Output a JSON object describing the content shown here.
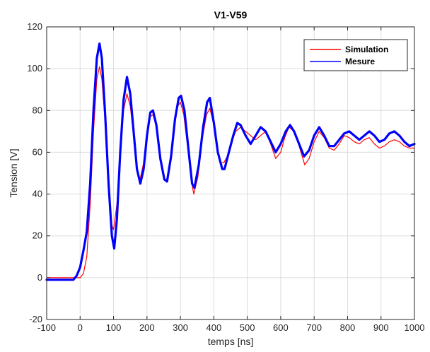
{
  "chart_data": {
    "type": "line",
    "title": "V1-V59",
    "xlabel": "temps [ns]",
    "ylabel": "Tension [V]",
    "xlim": [
      -100,
      1000
    ],
    "ylim": [
      -20,
      120
    ],
    "xticks": [
      -100,
      0,
      100,
      200,
      300,
      400,
      500,
      600,
      700,
      800,
      900,
      1000
    ],
    "yticks": [
      -20,
      0,
      20,
      40,
      60,
      80,
      100,
      120
    ],
    "grid": true,
    "legend_position": "top-right",
    "series": [
      {
        "name": "Simulation",
        "color": "#ff0000",
        "points": [
          [
            -100,
            0
          ],
          [
            0,
            0
          ],
          [
            10,
            2
          ],
          [
            20,
            10
          ],
          [
            30,
            35
          ],
          [
            40,
            70
          ],
          [
            50,
            95
          ],
          [
            58,
            101
          ],
          [
            65,
            95
          ],
          [
            75,
            75
          ],
          [
            85,
            45
          ],
          [
            95,
            25
          ],
          [
            100,
            23
          ],
          [
            110,
            35
          ],
          [
            120,
            62
          ],
          [
            130,
            80
          ],
          [
            140,
            88
          ],
          [
            150,
            82
          ],
          [
            160,
            68
          ],
          [
            170,
            52
          ],
          [
            178,
            46
          ],
          [
            190,
            55
          ],
          [
            200,
            70
          ],
          [
            210,
            77
          ],
          [
            218,
            78
          ],
          [
            228,
            72
          ],
          [
            240,
            58
          ],
          [
            252,
            47
          ],
          [
            258,
            46
          ],
          [
            270,
            56
          ],
          [
            282,
            72
          ],
          [
            292,
            82
          ],
          [
            300,
            84
          ],
          [
            310,
            78
          ],
          [
            322,
            62
          ],
          [
            333,
            46
          ],
          [
            340,
            40
          ],
          [
            352,
            48
          ],
          [
            365,
            66
          ],
          [
            378,
            78
          ],
          [
            388,
            81
          ],
          [
            400,
            73
          ],
          [
            412,
            60
          ],
          [
            420,
            55
          ],
          [
            430,
            55
          ],
          [
            440,
            58
          ],
          [
            452,
            64
          ],
          [
            465,
            70
          ],
          [
            480,
            72
          ],
          [
            495,
            70
          ],
          [
            510,
            68
          ],
          [
            525,
            66
          ],
          [
            540,
            68
          ],
          [
            555,
            70
          ],
          [
            570,
            64
          ],
          [
            585,
            57
          ],
          [
            600,
            60
          ],
          [
            612,
            67
          ],
          [
            625,
            72
          ],
          [
            640,
            70
          ],
          [
            655,
            63
          ],
          [
            672,
            54
          ],
          [
            685,
            57
          ],
          [
            700,
            65
          ],
          [
            715,
            70
          ],
          [
            730,
            67
          ],
          [
            745,
            62
          ],
          [
            760,
            61
          ],
          [
            775,
            64
          ],
          [
            790,
            68
          ],
          [
            805,
            67
          ],
          [
            820,
            65
          ],
          [
            835,
            64
          ],
          [
            850,
            66
          ],
          [
            865,
            67
          ],
          [
            880,
            64
          ],
          [
            895,
            62
          ],
          [
            910,
            63
          ],
          [
            925,
            65
          ],
          [
            940,
            66
          ],
          [
            955,
            65
          ],
          [
            970,
            63
          ],
          [
            985,
            62
          ],
          [
            1000,
            62
          ]
        ]
      },
      {
        "name": "Mesure",
        "color": "#0000ff",
        "points": [
          [
            -100,
            -1
          ],
          [
            -20,
            -1
          ],
          [
            -10,
            1
          ],
          [
            0,
            5
          ],
          [
            10,
            13
          ],
          [
            20,
            22
          ],
          [
            30,
            45
          ],
          [
            40,
            80
          ],
          [
            50,
            105
          ],
          [
            58,
            112
          ],
          [
            65,
            105
          ],
          [
            75,
            78
          ],
          [
            85,
            45
          ],
          [
            95,
            20
          ],
          [
            102,
            14
          ],
          [
            110,
            28
          ],
          [
            120,
            60
          ],
          [
            130,
            85
          ],
          [
            140,
            96
          ],
          [
            150,
            88
          ],
          [
            160,
            70
          ],
          [
            170,
            52
          ],
          [
            180,
            45
          ],
          [
            190,
            52
          ],
          [
            200,
            68
          ],
          [
            210,
            79
          ],
          [
            218,
            80
          ],
          [
            228,
            73
          ],
          [
            240,
            57
          ],
          [
            252,
            47
          ],
          [
            260,
            46
          ],
          [
            272,
            58
          ],
          [
            284,
            76
          ],
          [
            295,
            86
          ],
          [
            302,
            87
          ],
          [
            312,
            80
          ],
          [
            325,
            60
          ],
          [
            335,
            45
          ],
          [
            342,
            43
          ],
          [
            355,
            54
          ],
          [
            368,
            72
          ],
          [
            380,
            84
          ],
          [
            388,
            86
          ],
          [
            400,
            74
          ],
          [
            412,
            60
          ],
          [
            425,
            52
          ],
          [
            432,
            52
          ],
          [
            445,
            60
          ],
          [
            458,
            68
          ],
          [
            470,
            74
          ],
          [
            480,
            73
          ],
          [
            495,
            68
          ],
          [
            510,
            64
          ],
          [
            525,
            68
          ],
          [
            540,
            72
          ],
          [
            555,
            70
          ],
          [
            570,
            65
          ],
          [
            585,
            60
          ],
          [
            600,
            64
          ],
          [
            615,
            70
          ],
          [
            628,
            73
          ],
          [
            640,
            70
          ],
          [
            655,
            64
          ],
          [
            670,
            58
          ],
          [
            685,
            61
          ],
          [
            700,
            68
          ],
          [
            715,
            72
          ],
          [
            730,
            68
          ],
          [
            745,
            63
          ],
          [
            760,
            63
          ],
          [
            775,
            66
          ],
          [
            790,
            69
          ],
          [
            805,
            70
          ],
          [
            820,
            68
          ],
          [
            835,
            66
          ],
          [
            850,
            68
          ],
          [
            865,
            70
          ],
          [
            880,
            68
          ],
          [
            895,
            65
          ],
          [
            910,
            66
          ],
          [
            925,
            69
          ],
          [
            940,
            70
          ],
          [
            955,
            68
          ],
          [
            970,
            65
          ],
          [
            985,
            63
          ],
          [
            1000,
            64
          ]
        ]
      }
    ]
  }
}
